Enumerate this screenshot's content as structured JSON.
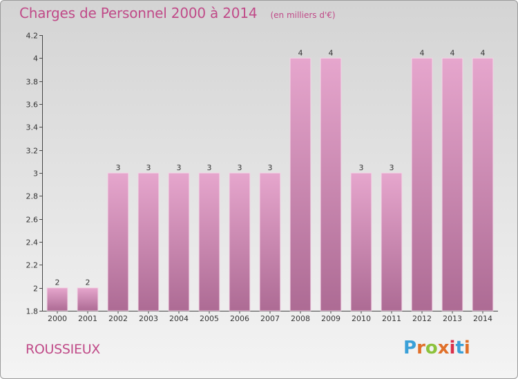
{
  "header": {
    "title": "Charges de Personnel 2000 à 2014",
    "subtitle": "(en milliers d'€)"
  },
  "footer": {
    "commune": "ROUSSIEUX",
    "logo_text": "Proxiti"
  },
  "colors": {
    "title": "#c04a88",
    "bar_top": "#e6a6cd",
    "bar_bottom": "#ad6b94",
    "logo_letters": [
      "#3aa0d8",
      "#e0702a",
      "#8cc23c",
      "#e0702a",
      "#d9304a",
      "#3aa0d8",
      "#e0702a"
    ]
  },
  "chart_data": {
    "type": "bar",
    "title": "Charges de Personnel 2000 à 2014",
    "subtitle": "(en milliers d'€)",
    "categories": [
      "2000",
      "2001",
      "2002",
      "2003",
      "2004",
      "2005",
      "2006",
      "2007",
      "2008",
      "2009",
      "2010",
      "2011",
      "2012",
      "2013",
      "2014"
    ],
    "values": [
      2,
      2,
      3,
      3,
      3,
      3,
      3,
      3,
      4,
      4,
      3,
      3,
      4,
      4,
      4
    ],
    "data_labels": [
      "2",
      "2",
      "3",
      "3",
      "3",
      "3",
      "3",
      "3",
      "4",
      "4",
      "3",
      "3",
      "4",
      "4",
      "4"
    ],
    "ylim": [
      1.8,
      4.2
    ],
    "yticks": [
      "1.8",
      "2",
      "2.2",
      "2.4",
      "2.6",
      "2.8",
      "3",
      "3.2",
      "3.4",
      "3.6",
      "3.8",
      "4",
      "4.2"
    ],
    "grid": false,
    "legend": "none"
  }
}
